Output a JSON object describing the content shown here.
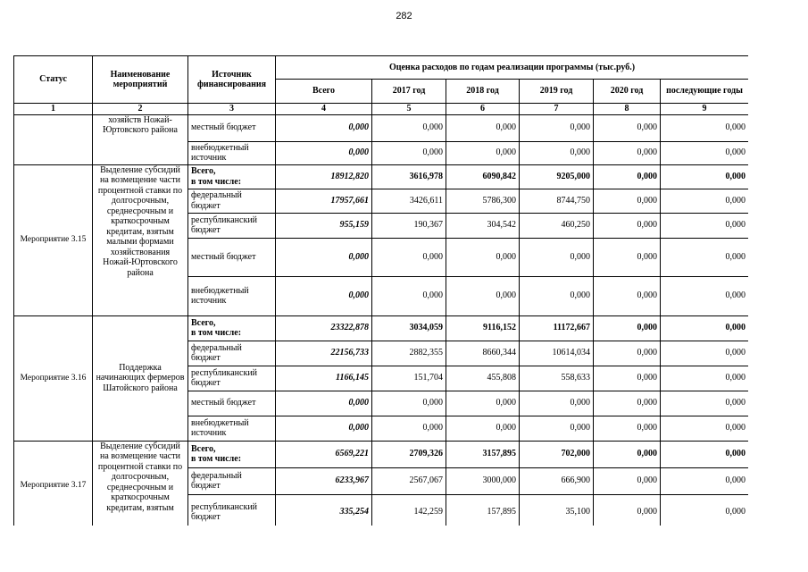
{
  "page_number": "282",
  "table": {
    "header": {
      "status": "Статус",
      "name": "Наименование мероприятий",
      "source": "Источник финансирования",
      "estimate": "Оценка расходов по годам реализации  программы (тыс.руб.)",
      "years": [
        "Всего",
        "2017 год",
        "2018 год",
        "2019 год",
        "2020 год",
        "последующие годы"
      ]
    },
    "column_numbers": [
      "1",
      "2",
      "3",
      "4",
      "5",
      "6",
      "7",
      "8",
      "9"
    ],
    "blocks": [
      {
        "name": "хозяйств Ножай-Юртовского района",
        "rows": [
          {
            "source": "местный бюджет",
            "values": [
              "0,000",
              "0,000",
              "0,000",
              "0,000",
              "0,000",
              "0,000"
            ]
          },
          {
            "source": "внебюджетный источник",
            "values": [
              "0,000",
              "0,000",
              "0,000",
              "0,000",
              "0,000",
              "0,000"
            ]
          }
        ]
      },
      {
        "status": "Мероприятие 3.15",
        "name": "Выделение субсидий на возмещение части процентной ставки по долгосрочным, среднесрочным и краткосрочным кредитам, взятым малыми формами хозяйствования Ножай-Юртовского района",
        "rows": [
          {
            "source": "Всего,\nв том числе:",
            "values": [
              "18912,820",
              "3616,978",
              "6090,842",
              "9205,000",
              "0,000",
              "0,000"
            ]
          },
          {
            "source": "федеральный бюджет",
            "values": [
              "17957,661",
              "3426,611",
              "5786,300",
              "8744,750",
              "0,000",
              "0,000"
            ]
          },
          {
            "source": "республиканский бюджет",
            "values": [
              "955,159",
              "190,367",
              "304,542",
              "460,250",
              "0,000",
              "0,000"
            ]
          },
          {
            "source": "местный бюджет",
            "values": [
              "0,000",
              "0,000",
              "0,000",
              "0,000",
              "0,000",
              "0,000"
            ]
          },
          {
            "source": "внебюджетный источник",
            "values": [
              "0,000",
              "0,000",
              "0,000",
              "0,000",
              "0,000",
              "0,000"
            ]
          }
        ]
      },
      {
        "status": "Мероприятие 3.16",
        "name": "Поддержка начинающих фермеров Шатойского района",
        "rows": [
          {
            "source": "Всего,\nв том числе:",
            "values": [
              "23322,878",
              "3034,059",
              "9116,152",
              "11172,667",
              "0,000",
              "0,000"
            ]
          },
          {
            "source": "федеральный бюджет",
            "values": [
              "22156,733",
              "2882,355",
              "8660,344",
              "10614,034",
              "0,000",
              "0,000"
            ]
          },
          {
            "source": "республиканский бюджет",
            "values": [
              "1166,145",
              "151,704",
              "455,808",
              "558,633",
              "0,000",
              "0,000"
            ]
          },
          {
            "source": "местный бюджет",
            "values": [
              "0,000",
              "0,000",
              "0,000",
              "0,000",
              "0,000",
              "0,000"
            ]
          },
          {
            "source": "внебюджетный источник",
            "values": [
              "0,000",
              "0,000",
              "0,000",
              "0,000",
              "0,000",
              "0,000"
            ]
          }
        ]
      },
      {
        "status": "Мероприятие 3.17",
        "name": "Выделение субсидий на возмещение части процентной ставки по долгосрочным, среднесрочным и краткосрочным кредитам, взятым",
        "rows": [
          {
            "source": "Всего,\nв том числе:",
            "values": [
              "6569,221",
              "2709,326",
              "3157,895",
              "702,000",
              "0,000",
              "0,000"
            ]
          },
          {
            "source": "федеральный бюджет",
            "values": [
              "6233,967",
              "2567,067",
              "3000,000",
              "666,900",
              "0,000",
              "0,000"
            ]
          },
          {
            "source": "республиканский бюджет",
            "values": [
              "335,254",
              "142,259",
              "157,895",
              "35,100",
              "0,000",
              "0,000"
            ]
          }
        ]
      }
    ]
  }
}
